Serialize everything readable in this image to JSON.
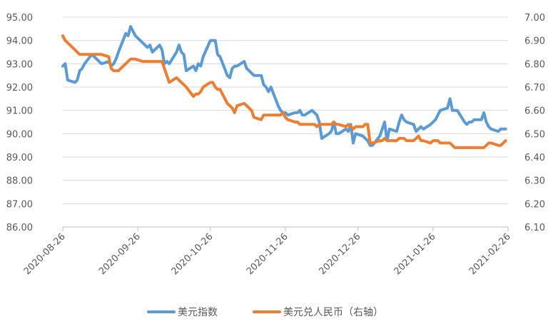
{
  "chart_data": {
    "type": "line",
    "title": "",
    "xlabel": "",
    "ylabel": "",
    "y_left": {
      "min": 86.0,
      "max": 95.0,
      "ticks": [
        "86.00",
        "87.00",
        "88.00",
        "89.00",
        "90.00",
        "91.00",
        "92.00",
        "93.00",
        "94.00",
        "95.00"
      ]
    },
    "y_right": {
      "min": 6.1,
      "max": 7.0,
      "ticks": [
        "6.10",
        "6.20",
        "6.30",
        "6.40",
        "6.50",
        "6.60",
        "6.70",
        "6.80",
        "6.90",
        "7.00"
      ]
    },
    "x_ticks": [
      "2020-08-26",
      "2020-09-26",
      "2020-10-26",
      "2020-11-26",
      "2020-12-26",
      "2021-01-26",
      "2021-02-26"
    ],
    "grid": "horizontal",
    "legend_position": "bottom",
    "series": [
      {
        "name": "美元指数",
        "axis": "left",
        "color": "#5B9BD5",
        "points": [
          [
            "2020-08-26",
            92.9
          ],
          [
            "2020-08-27",
            93.0
          ],
          [
            "2020-08-28",
            92.3
          ],
          [
            "2020-08-31",
            92.2
          ],
          [
            "2020-09-01",
            92.3
          ],
          [
            "2020-09-02",
            92.7
          ],
          [
            "2020-09-03",
            92.8
          ],
          [
            "2020-09-04",
            93.0
          ],
          [
            "2020-09-07",
            93.4
          ],
          [
            "2020-09-08",
            93.3
          ],
          [
            "2020-09-09",
            93.2
          ],
          [
            "2020-09-10",
            93.1
          ],
          [
            "2020-09-11",
            93.0
          ],
          [
            "2020-09-14",
            93.1
          ],
          [
            "2020-09-15",
            92.9
          ],
          [
            "2020-09-16",
            93.0
          ],
          [
            "2020-09-17",
            93.2
          ],
          [
            "2020-09-18",
            93.5
          ],
          [
            "2020-09-21",
            94.3
          ],
          [
            "2020-09-22",
            94.2
          ],
          [
            "2020-09-23",
            94.6
          ],
          [
            "2020-09-24",
            94.4
          ],
          [
            "2020-09-25",
            94.2
          ],
          [
            "2020-09-28",
            93.9
          ],
          [
            "2020-09-29",
            93.8
          ],
          [
            "2020-09-30",
            93.7
          ],
          [
            "2020-10-01",
            93.8
          ],
          [
            "2020-10-02",
            93.5
          ],
          [
            "2020-10-05",
            93.8
          ],
          [
            "2020-10-06",
            93.6
          ],
          [
            "2020-10-07",
            93.0
          ],
          [
            "2020-10-08",
            93.1
          ],
          [
            "2020-10-09",
            93.0
          ],
          [
            "2020-10-12",
            93.5
          ],
          [
            "2020-10-13",
            93.8
          ],
          [
            "2020-10-14",
            93.5
          ],
          [
            "2020-10-15",
            93.4
          ],
          [
            "2020-10-16",
            92.7
          ],
          [
            "2020-10-19",
            92.9
          ],
          [
            "2020-10-20",
            92.7
          ],
          [
            "2020-10-21",
            93.0
          ],
          [
            "2020-10-22",
            92.9
          ],
          [
            "2020-10-23",
            93.3
          ],
          [
            "2020-10-26",
            94.0
          ],
          [
            "2020-10-27",
            94.0
          ],
          [
            "2020-10-28",
            94.0
          ],
          [
            "2020-10-29",
            93.4
          ],
          [
            "2020-10-30",
            93.3
          ],
          [
            "2020-11-02",
            92.5
          ],
          [
            "2020-11-03",
            92.4
          ],
          [
            "2020-11-04",
            92.8
          ],
          [
            "2020-11-05",
            92.9
          ],
          [
            "2020-11-06",
            92.9
          ],
          [
            "2020-11-09",
            93.1
          ],
          [
            "2020-11-10",
            92.8
          ],
          [
            "2020-11-11",
            92.7
          ],
          [
            "2020-11-12",
            92.6
          ],
          [
            "2020-11-13",
            92.5
          ],
          [
            "2020-11-16",
            92.5
          ],
          [
            "2020-11-17",
            92.1
          ],
          [
            "2020-11-18",
            92.0
          ],
          [
            "2020-11-19",
            91.8
          ],
          [
            "2020-11-20",
            92.0
          ],
          [
            "2020-11-23",
            91.2
          ],
          [
            "2020-11-24",
            91.0
          ],
          [
            "2020-11-25",
            90.9
          ],
          [
            "2020-11-26",
            90.9
          ],
          [
            "2020-11-27",
            90.8
          ],
          [
            "2020-11-30",
            90.9
          ],
          [
            "2020-12-01",
            90.9
          ],
          [
            "2020-12-02",
            91.0
          ],
          [
            "2020-12-03",
            90.8
          ],
          [
            "2020-12-04",
            90.8
          ],
          [
            "2020-12-07",
            91.0
          ],
          [
            "2020-12-08",
            90.9
          ],
          [
            "2020-12-09",
            90.8
          ],
          [
            "2020-12-10",
            90.5
          ],
          [
            "2020-12-11",
            89.8
          ],
          [
            "2020-12-14",
            90.0
          ],
          [
            "2020-12-15",
            90.1
          ],
          [
            "2020-12-16",
            90.5
          ],
          [
            "2020-12-17",
            90.0
          ],
          [
            "2020-12-18",
            90.0
          ],
          [
            "2020-12-21",
            90.2
          ],
          [
            "2020-12-22",
            90.1
          ],
          [
            "2020-12-23",
            90.4
          ],
          [
            "2020-12-24",
            89.6
          ],
          [
            "2020-12-25",
            90.0
          ],
          [
            "2020-12-28",
            89.9
          ],
          [
            "2020-12-29",
            89.8
          ],
          [
            "2020-12-30",
            89.7
          ],
          [
            "2020-12-31",
            89.5
          ],
          [
            "2021-01-01",
            89.5
          ],
          [
            "2021-01-04",
            89.9
          ],
          [
            "2021-01-05",
            90.2
          ],
          [
            "2021-01-06",
            90.5
          ],
          [
            "2021-01-07",
            89.7
          ],
          [
            "2021-01-08",
            90.2
          ],
          [
            "2021-01-11",
            90.1
          ],
          [
            "2021-01-12",
            90.5
          ],
          [
            "2021-01-13",
            90.8
          ],
          [
            "2021-01-14",
            90.6
          ],
          [
            "2021-01-15",
            90.5
          ],
          [
            "2021-01-18",
            90.4
          ],
          [
            "2021-01-19",
            90.1
          ],
          [
            "2021-01-20",
            90.2
          ],
          [
            "2021-01-21",
            90.3
          ],
          [
            "2021-01-22",
            90.2
          ],
          [
            "2021-01-25",
            90.4
          ],
          [
            "2021-01-26",
            90.5
          ],
          [
            "2021-01-27",
            90.6
          ],
          [
            "2021-01-28",
            90.8
          ],
          [
            "2021-01-29",
            91.0
          ],
          [
            "2021-02-01",
            91.1
          ],
          [
            "2021-02-02",
            91.5
          ],
          [
            "2021-02-03",
            91.0
          ],
          [
            "2021-02-04",
            91.0
          ],
          [
            "2021-02-05",
            91.0
          ],
          [
            "2021-02-08",
            90.5
          ],
          [
            "2021-02-09",
            90.4
          ],
          [
            "2021-02-10",
            90.5
          ],
          [
            "2021-02-11",
            90.5
          ],
          [
            "2021-02-12",
            90.6
          ],
          [
            "2021-02-15",
            90.6
          ],
          [
            "2021-02-16",
            90.9
          ],
          [
            "2021-02-17",
            90.5
          ],
          [
            "2021-02-18",
            90.3
          ],
          [
            "2021-02-19",
            90.2
          ],
          [
            "2021-02-22",
            90.1
          ],
          [
            "2021-02-23",
            90.2
          ],
          [
            "2021-02-24",
            90.2
          ],
          [
            "2021-02-25",
            90.2
          ]
        ]
      },
      {
        "name": "美元兑人民币（右轴）",
        "axis": "right",
        "color": "#ED7D31",
        "points": [
          [
            "2020-08-26",
            6.92
          ],
          [
            "2020-08-27",
            6.9
          ],
          [
            "2020-08-28",
            6.89
          ],
          [
            "2020-08-31",
            6.86
          ],
          [
            "2020-09-01",
            6.85
          ],
          [
            "2020-09-02",
            6.84
          ],
          [
            "2020-09-03",
            6.84
          ],
          [
            "2020-09-04",
            6.84
          ],
          [
            "2020-09-07",
            6.84
          ],
          [
            "2020-09-08",
            6.84
          ],
          [
            "2020-09-09",
            6.84
          ],
          [
            "2020-09-10",
            6.84
          ],
          [
            "2020-09-11",
            6.84
          ],
          [
            "2020-09-14",
            6.83
          ],
          [
            "2020-09-15",
            6.78
          ],
          [
            "2020-09-16",
            6.77
          ],
          [
            "2020-09-17",
            6.77
          ],
          [
            "2020-09-18",
            6.77
          ],
          [
            "2020-09-21",
            6.8
          ],
          [
            "2020-09-22",
            6.81
          ],
          [
            "2020-09-23",
            6.82
          ],
          [
            "2020-09-24",
            6.82
          ],
          [
            "2020-09-25",
            6.82
          ],
          [
            "2020-09-28",
            6.81
          ],
          [
            "2020-09-29",
            6.81
          ],
          [
            "2020-09-30",
            6.81
          ],
          [
            "2020-10-01",
            6.81
          ],
          [
            "2020-10-02",
            6.81
          ],
          [
            "2020-10-05",
            6.81
          ],
          [
            "2020-10-06",
            6.81
          ],
          [
            "2020-10-07",
            6.78
          ],
          [
            "2020-10-08",
            6.75
          ],
          [
            "2020-10-09",
            6.72
          ],
          [
            "2020-10-12",
            6.74
          ],
          [
            "2020-10-13",
            6.73
          ],
          [
            "2020-10-14",
            6.72
          ],
          [
            "2020-10-15",
            6.71
          ],
          [
            "2020-10-16",
            6.7
          ],
          [
            "2020-10-19",
            6.66
          ],
          [
            "2020-10-20",
            6.67
          ],
          [
            "2020-10-21",
            6.67
          ],
          [
            "2020-10-22",
            6.68
          ],
          [
            "2020-10-23",
            6.7
          ],
          [
            "2020-10-26",
            6.72
          ],
          [
            "2020-10-27",
            6.72
          ],
          [
            "2020-10-28",
            6.7
          ],
          [
            "2020-10-29",
            6.69
          ],
          [
            "2020-10-30",
            6.69
          ],
          [
            "2020-11-02",
            6.63
          ],
          [
            "2020-11-03",
            6.62
          ],
          [
            "2020-11-04",
            6.61
          ],
          [
            "2020-11-05",
            6.59
          ],
          [
            "2020-11-06",
            6.62
          ],
          [
            "2020-11-09",
            6.63
          ],
          [
            "2020-11-10",
            6.62
          ],
          [
            "2020-11-11",
            6.61
          ],
          [
            "2020-11-12",
            6.6
          ],
          [
            "2020-11-13",
            6.57
          ],
          [
            "2020-11-16",
            6.56
          ],
          [
            "2020-11-17",
            6.58
          ],
          [
            "2020-11-18",
            6.58
          ],
          [
            "2020-11-19",
            6.58
          ],
          [
            "2020-11-20",
            6.58
          ],
          [
            "2020-11-23",
            6.58
          ],
          [
            "2020-11-24",
            6.58
          ],
          [
            "2020-11-25",
            6.59
          ],
          [
            "2020-11-26",
            6.57
          ],
          [
            "2020-11-27",
            6.56
          ],
          [
            "2020-11-30",
            6.55
          ],
          [
            "2020-12-01",
            6.55
          ],
          [
            "2020-12-02",
            6.54
          ],
          [
            "2020-12-03",
            6.54
          ],
          [
            "2020-12-04",
            6.54
          ],
          [
            "2020-12-07",
            6.54
          ],
          [
            "2020-12-08",
            6.54
          ],
          [
            "2020-12-09",
            6.53
          ],
          [
            "2020-12-10",
            6.54
          ],
          [
            "2020-12-11",
            6.54
          ],
          [
            "2020-12-14",
            6.54
          ],
          [
            "2020-12-15",
            6.54
          ],
          [
            "2020-12-16",
            6.55
          ],
          [
            "2020-12-17",
            6.54
          ],
          [
            "2020-12-18",
            6.54
          ],
          [
            "2020-12-21",
            6.53
          ],
          [
            "2020-12-22",
            6.54
          ],
          [
            "2020-12-23",
            6.53
          ],
          [
            "2020-12-24",
            6.52
          ],
          [
            "2020-12-25",
            6.53
          ],
          [
            "2020-12-28",
            6.53
          ],
          [
            "2020-12-29",
            6.54
          ],
          [
            "2020-12-30",
            6.54
          ],
          [
            "2020-12-31",
            6.46
          ],
          [
            "2021-01-01",
            6.46
          ],
          [
            "2021-01-04",
            6.47
          ],
          [
            "2021-01-05",
            6.47
          ],
          [
            "2021-01-06",
            6.48
          ],
          [
            "2021-01-07",
            6.47
          ],
          [
            "2021-01-08",
            6.47
          ],
          [
            "2021-01-11",
            6.47
          ],
          [
            "2021-01-12",
            6.48
          ],
          [
            "2021-01-13",
            6.48
          ],
          [
            "2021-01-14",
            6.48
          ],
          [
            "2021-01-15",
            6.47
          ],
          [
            "2021-01-18",
            6.47
          ],
          [
            "2021-01-19",
            6.48
          ],
          [
            "2021-01-20",
            6.49
          ],
          [
            "2021-01-21",
            6.47
          ],
          [
            "2021-01-22",
            6.47
          ],
          [
            "2021-01-25",
            6.46
          ],
          [
            "2021-01-26",
            6.47
          ],
          [
            "2021-01-27",
            6.47
          ],
          [
            "2021-01-28",
            6.47
          ],
          [
            "2021-01-29",
            6.46
          ],
          [
            "2021-02-01",
            6.46
          ],
          [
            "2021-02-02",
            6.46
          ],
          [
            "2021-02-03",
            6.45
          ],
          [
            "2021-02-04",
            6.44
          ],
          [
            "2021-02-05",
            6.44
          ],
          [
            "2021-02-08",
            6.44
          ],
          [
            "2021-02-09",
            6.44
          ],
          [
            "2021-02-10",
            6.44
          ],
          [
            "2021-02-11",
            6.44
          ],
          [
            "2021-02-12",
            6.44
          ],
          [
            "2021-02-15",
            6.44
          ],
          [
            "2021-02-16",
            6.44
          ],
          [
            "2021-02-17",
            6.45
          ],
          [
            "2021-02-18",
            6.46
          ],
          [
            "2021-02-19",
            6.46
          ],
          [
            "2021-02-22",
            6.45
          ],
          [
            "2021-02-23",
            6.45
          ],
          [
            "2021-02-24",
            6.46
          ],
          [
            "2021-02-25",
            6.47
          ]
        ]
      }
    ]
  }
}
